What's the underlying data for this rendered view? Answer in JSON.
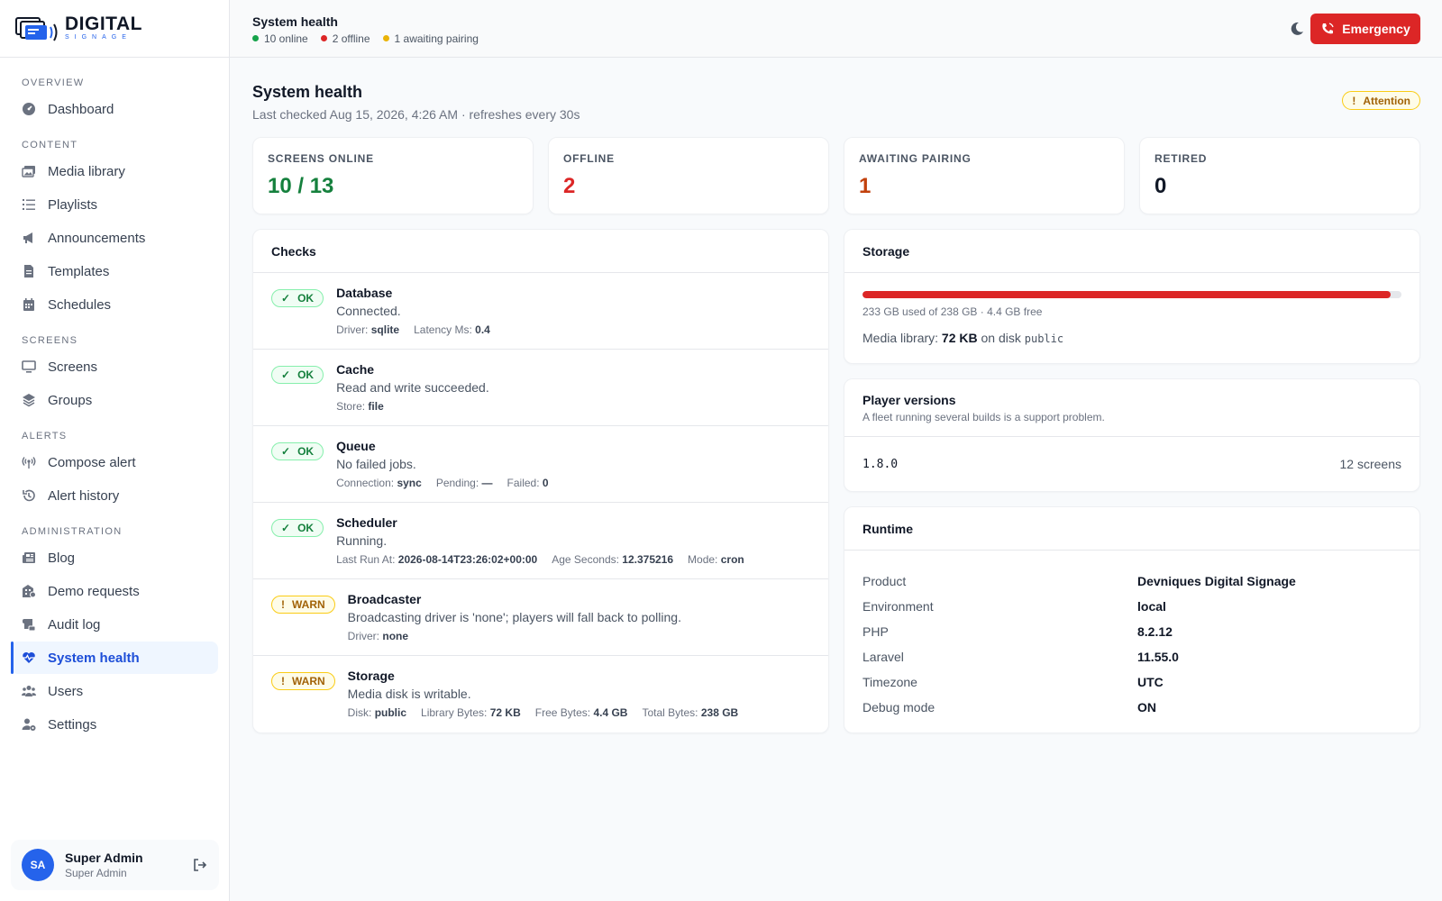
{
  "brand": {
    "name": "DIGITAL",
    "tagline": "SIGNAGE"
  },
  "sidebar": {
    "sections": [
      {
        "title": "OVERVIEW",
        "items": [
          {
            "label": "Dashboard",
            "icon": "dashboard-icon"
          }
        ]
      },
      {
        "title": "CONTENT",
        "items": [
          {
            "label": "Media library",
            "icon": "images-icon"
          },
          {
            "label": "Playlists",
            "icon": "list-icon"
          },
          {
            "label": "Announcements",
            "icon": "megaphone-icon"
          },
          {
            "label": "Templates",
            "icon": "document-icon"
          },
          {
            "label": "Schedules",
            "icon": "calendar-icon"
          }
        ]
      },
      {
        "title": "SCREENS",
        "items": [
          {
            "label": "Screens",
            "icon": "monitor-icon"
          },
          {
            "label": "Groups",
            "icon": "layers-icon"
          }
        ]
      },
      {
        "title": "ALERTS",
        "items": [
          {
            "label": "Compose alert",
            "icon": "broadcast-icon"
          },
          {
            "label": "Alert history",
            "icon": "history-icon"
          }
        ]
      },
      {
        "title": "ADMINISTRATION",
        "items": [
          {
            "label": "Blog",
            "icon": "newspaper-icon"
          },
          {
            "label": "Demo requests",
            "icon": "building-icon"
          },
          {
            "label": "Audit log",
            "icon": "scroll-icon"
          },
          {
            "label": "System health",
            "icon": "heart-pulse-icon",
            "active": true
          },
          {
            "label": "Users",
            "icon": "users-icon"
          },
          {
            "label": "Settings",
            "icon": "user-gear-icon"
          }
        ]
      }
    ],
    "user": {
      "initials": "SA",
      "name": "Super Admin",
      "role": "Super Admin"
    }
  },
  "topbar": {
    "title": "System health",
    "status": [
      {
        "label": "10 online",
        "color": "#16a34a"
      },
      {
        "label": "2 offline",
        "color": "#dc2626"
      },
      {
        "label": "1 awaiting pairing",
        "color": "#eab308"
      }
    ],
    "emergency_label": "Emergency"
  },
  "page": {
    "title": "System health",
    "subtitle": "Last checked Aug 15, 2026, 4:26 AM · refreshes every 30s",
    "badge_icon": "!",
    "badge_label": "Attention"
  },
  "stats": [
    {
      "label": "SCREENS ONLINE",
      "value": "10 / 13",
      "color": "#15803d"
    },
    {
      "label": "OFFLINE",
      "value": "2",
      "color": "#dc2626"
    },
    {
      "label": "AWAITING PAIRING",
      "value": "1",
      "color": "#c2410c"
    },
    {
      "label": "RETIRED",
      "value": "0",
      "color": "#111827"
    }
  ],
  "checks": {
    "title": "Checks",
    "items": [
      {
        "status": "OK",
        "status_icon": "✓",
        "name": "Database",
        "message": "Connected.",
        "meta": [
          {
            "k": "Driver:",
            "v": "sqlite"
          },
          {
            "k": "Latency Ms:",
            "v": "0.4"
          }
        ]
      },
      {
        "status": "OK",
        "status_icon": "✓",
        "name": "Cache",
        "message": "Read and write succeeded.",
        "meta": [
          {
            "k": "Store:",
            "v": "file"
          }
        ]
      },
      {
        "status": "OK",
        "status_icon": "✓",
        "name": "Queue",
        "message": "No failed jobs.",
        "meta": [
          {
            "k": "Connection:",
            "v": "sync"
          },
          {
            "k": "Pending:",
            "v": "—"
          },
          {
            "k": "Failed:",
            "v": "0"
          }
        ]
      },
      {
        "status": "OK",
        "status_icon": "✓",
        "name": "Scheduler",
        "message": "Running.",
        "meta": [
          {
            "k": "Last Run At:",
            "v": "2026-08-14T23:26:02+00:00"
          },
          {
            "k": "Age Seconds:",
            "v": "12.375216"
          },
          {
            "k": "Mode:",
            "v": "cron"
          }
        ]
      },
      {
        "status": "WARN",
        "status_icon": "!",
        "name": "Broadcaster",
        "message": "Broadcasting driver is 'none'; players will fall back to polling.",
        "meta": [
          {
            "k": "Driver:",
            "v": "none"
          }
        ]
      },
      {
        "status": "WARN",
        "status_icon": "!",
        "name": "Storage",
        "message": "Media disk is writable.",
        "meta": [
          {
            "k": "Disk:",
            "v": "public"
          },
          {
            "k": "Library Bytes:",
            "v": "72 KB"
          },
          {
            "k": "Free Bytes:",
            "v": "4.4 GB"
          },
          {
            "k": "Total Bytes:",
            "v": "238 GB"
          }
        ]
      }
    ]
  },
  "storage": {
    "title": "Storage",
    "used_fraction": 0.98,
    "summary": "233 GB used of 238 GB · 4.4 GB free",
    "media_prefix": "Media library:",
    "media_size": "72 KB",
    "media_mid": "on disk",
    "media_disk": "public"
  },
  "player_versions": {
    "title": "Player versions",
    "subtitle": "A fleet running several builds is a support problem.",
    "rows": [
      {
        "version": "1.8.0",
        "count": "12 screens"
      }
    ]
  },
  "runtime": {
    "title": "Runtime",
    "rows": [
      {
        "k": "Product",
        "v": "Devniques Digital Signage"
      },
      {
        "k": "Environment",
        "v": "local"
      },
      {
        "k": "PHP",
        "v": "8.2.12"
      },
      {
        "k": "Laravel",
        "v": "11.55.0"
      },
      {
        "k": "Timezone",
        "v": "UTC"
      },
      {
        "k": "Debug mode",
        "v": "ON"
      }
    ]
  }
}
